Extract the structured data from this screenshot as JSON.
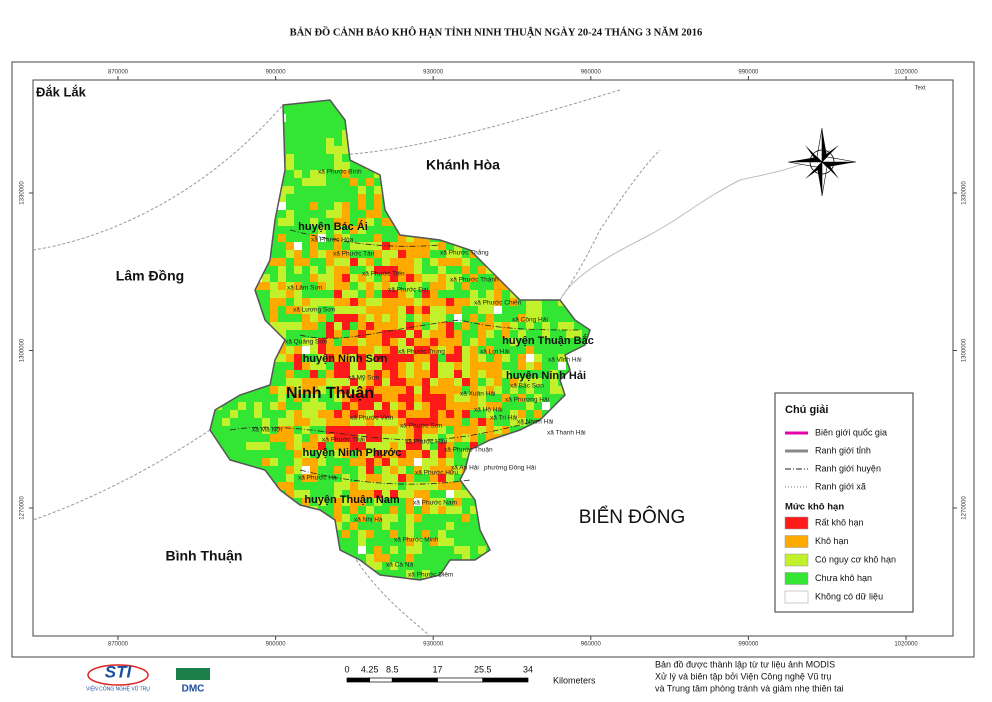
{
  "title": "BẢN ĐỒ CẢNH BÁO KHÔ HẠN TỈNH NINH THUẬN NGÀY 20-24 THÁNG 3 NĂM 2016",
  "x_ticks": [
    870000,
    900000,
    930000,
    960000,
    990000,
    1020000
  ],
  "y_ticks": [
    1330000,
    1300000,
    1270000
  ],
  "frame_label": "Text",
  "regions": [
    "Đắk Lắk",
    "Khánh Hòa",
    "Lâm Đồng",
    "Bình Thuận",
    "BIỂN ĐÔNG",
    "Ninh Thuận"
  ],
  "districts": [
    "huyện Bác Ái",
    "huyện Ninh Sơn",
    "huyện Thuận Bắc",
    "huyện Ninh Hải",
    "huyện Ninh Phước",
    "huyện Thuận Nam"
  ],
  "communes": [
    "xã Phước Bình",
    "xã Phước Hòa",
    "xã Phước Tân",
    "xã Phước Thắng",
    "xã Phước Tiến",
    "xã Phước Thành",
    "xã Lâm Sơn",
    "xã Phước Đại",
    "xã Lương Sơn",
    "xã Phước Chiến",
    "xã Công Hải",
    "xã Quảng Sơn",
    "xã Phước Trung",
    "xã Lợi Hải",
    "xã Vĩnh Hải",
    "xã Mỹ Sơn",
    "xã Bắc Sơn",
    "xã Xuân Hải",
    "xã Phương Hải",
    "xã Hộ Hải",
    "xã Tri Hải",
    "xã Nhơn Hải",
    "xã Thanh Hải",
    "xã Ma Nới",
    "xã Phước Vinh",
    "xã Phước Sơn",
    "xã Phước Thái",
    "xã Phước Hậu",
    "xã Phước Thuận",
    "xã Phước Hà",
    "xã An Hải",
    "phường Đông Hải",
    "xã Phước Hữu",
    "xã Phước Nam",
    "xã Nhị Hà",
    "xã Phước Minh",
    "xã Cà Ná",
    "xã Phước Diêm"
  ],
  "legend": {
    "title": "Chú giải",
    "boundaries": [
      "Biên giới quốc gia",
      "Ranh giới tỉnh",
      "Ranh giới huyện",
      "Ranh giới xã"
    ],
    "level_title": "Mức khô hạn",
    "levels": [
      {
        "label": "Rất khô hạn",
        "color": "#ff1a1a"
      },
      {
        "label": "Khô hạn",
        "color": "#ffaa00"
      },
      {
        "label": "Có nguy cơ khô hạn",
        "color": "#c2f02a"
      },
      {
        "label": "Chưa khô hạn",
        "color": "#33e633"
      },
      {
        "label": "Không có dữ liệu",
        "color": "#ffffff"
      }
    ]
  },
  "scale": {
    "ticks": [
      0,
      4.25,
      8.5,
      17,
      25.5,
      34
    ],
    "unit": "Kilometers"
  },
  "logos": [
    "STI",
    "VIỆN CÔNG NGHỆ VŨ TRỤ",
    "DMC"
  ],
  "credits": [
    "Bản đồ được thành lập từ tư liệu ảnh MODIS",
    "Xử lý và biên tập bởi Viện Công nghệ Vũ trụ",
    "và Trung tâm phòng tránh và giảm nhẹ thiên tai"
  ]
}
